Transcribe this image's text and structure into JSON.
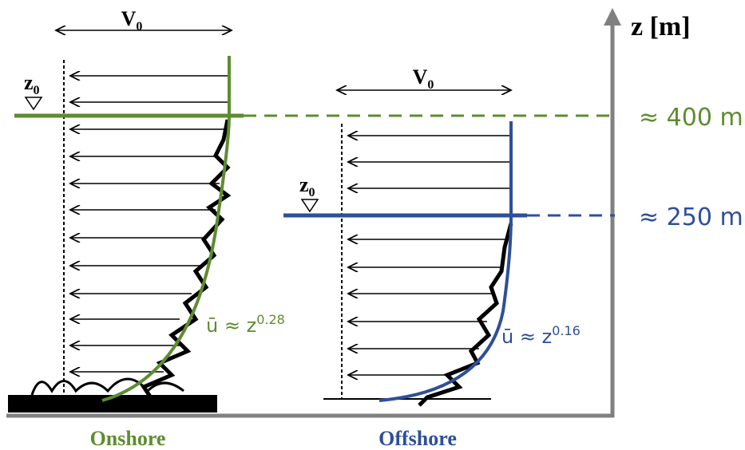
{
  "axis": {
    "label": "z [m]"
  },
  "levels": [
    {
      "label": "≈ 400 m"
    },
    {
      "label": "≈ 250 m"
    }
  ],
  "panels": [
    {
      "name": "Onshore",
      "velocity": {
        "base": "V",
        "sub": "0"
      },
      "height": {
        "base": "z",
        "sub": "0"
      },
      "law": {
        "base": "ū ≈ z",
        "exp": "0.28"
      }
    },
    {
      "name": "Offshore",
      "velocity": {
        "base": "V",
        "sub": "0"
      },
      "height": {
        "base": "z",
        "sub": "0"
      },
      "law": {
        "base": "ū ≈ z",
        "exp": "0.16"
      }
    }
  ]
}
